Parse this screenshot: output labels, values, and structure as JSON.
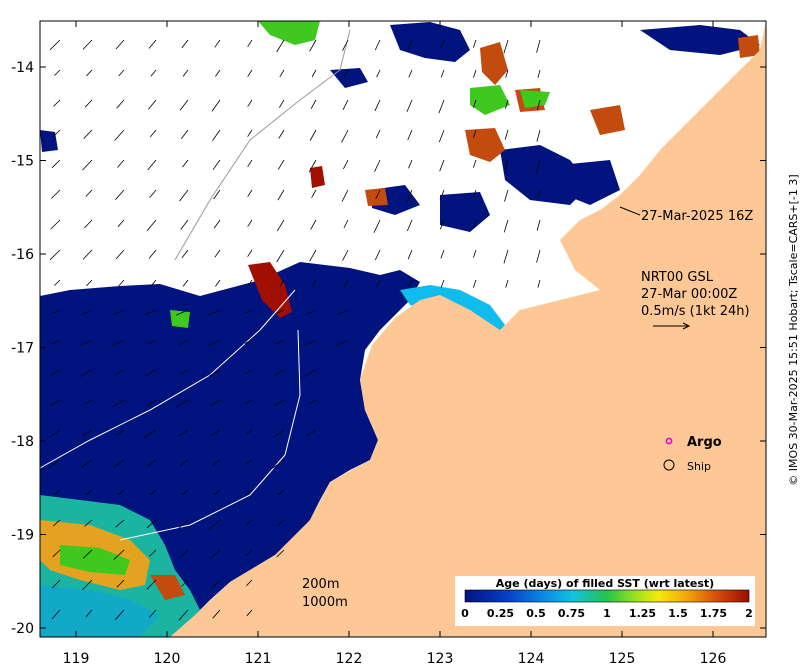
{
  "axes": {
    "lon_ticks": [
      "119",
      "120",
      "121",
      "122",
      "123",
      "124",
      "125",
      "126"
    ],
    "lat_ticks": [
      "-14",
      "-15",
      "-16",
      "-17",
      "-18",
      "-19",
      "-20"
    ]
  },
  "annotations": {
    "time_label": "27-Mar-2025 16Z",
    "product_line1": "NRT00 GSL",
    "product_line2": "27-Mar 00:00Z",
    "product_line3": "0.5m/s (1kt 24h)",
    "argo_label": "Argo",
    "ship_label": "Ship",
    "depth_200": "200m",
    "depth_1000": "1000m",
    "credit": "© IMOS 30-Mar-2025 15:51 Hobart; Tscale=CARS+[-1 3]"
  },
  "colorbar": {
    "title": "Age (days) of filled SST (wrt latest)",
    "ticks": [
      "0",
      "0.25",
      "0.5",
      "0.75",
      "1",
      "1.25",
      "1.5",
      "1.75",
      "2"
    ]
  },
  "colors": {
    "land": "#fdc796",
    "deep_blue": "#00137e",
    "cyan": "#10bbee",
    "dark_red": "#a10f00",
    "orange_red": "#c34b0d",
    "green": "#3fc81d"
  }
}
